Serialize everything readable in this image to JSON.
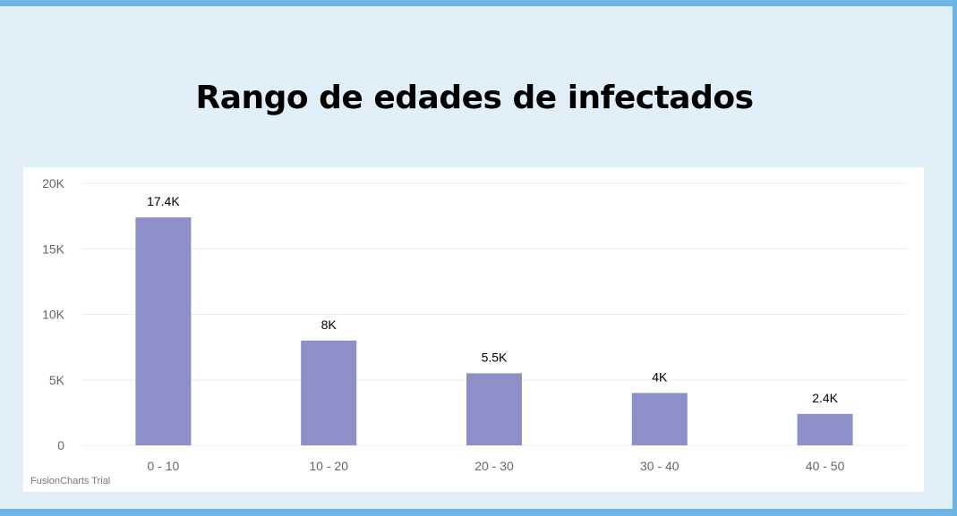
{
  "title": "Rango de edades de infectados",
  "credit": "FusionCharts Trial",
  "colors": {
    "bar": "#8c8fc8",
    "frame": "#6cb4e6",
    "panel": "#e1eff9",
    "grid": "#eeeeee"
  },
  "chart_data": {
    "type": "bar",
    "title": "Rango de edades de infectados",
    "categories": [
      "0 - 10",
      "10 - 20",
      "20 - 30",
      "30 - 40",
      "40 - 50"
    ],
    "values": [
      17400,
      8000,
      5500,
      4000,
      2400
    ],
    "data_labels": [
      "17.4K",
      "8K",
      "5.5K",
      "4K",
      "2.4K"
    ],
    "yticks": [
      0,
      5000,
      10000,
      15000,
      20000
    ],
    "ytick_labels": [
      "0",
      "5K",
      "10K",
      "15K",
      "20K"
    ],
    "ylim": [
      0,
      20000
    ],
    "xlabel": "",
    "ylabel": "",
    "grid": true
  }
}
